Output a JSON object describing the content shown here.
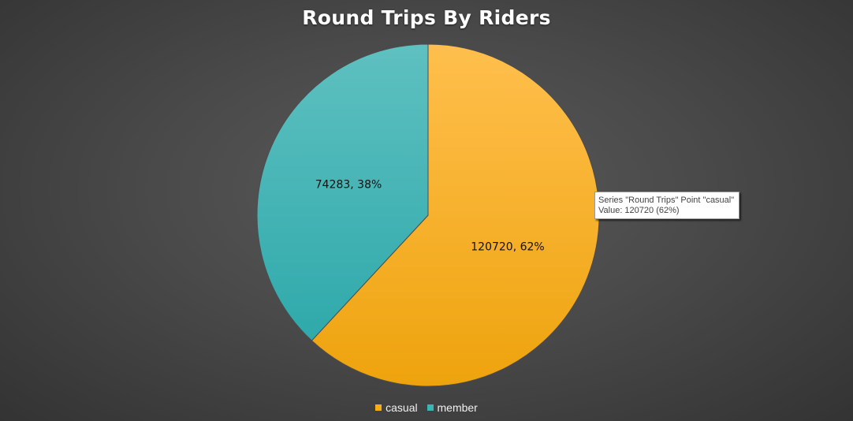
{
  "chart_data": {
    "type": "pie",
    "title": "Round Trips By Riders",
    "series_name": "Round Trips",
    "categories": [
      "casual",
      "member"
    ],
    "values": [
      120720,
      74283
    ],
    "percentages": [
      62,
      38
    ],
    "data_labels": [
      "120720, 62%",
      "74283, 38%"
    ],
    "colors": [
      "#f5ad1c",
      "#3bb4b6"
    ],
    "legend_position": "bottom"
  },
  "tooltip": {
    "line1": "Series \"Round Trips\" Point \"casual\"",
    "line2": "Value: 120720 (62%)"
  }
}
